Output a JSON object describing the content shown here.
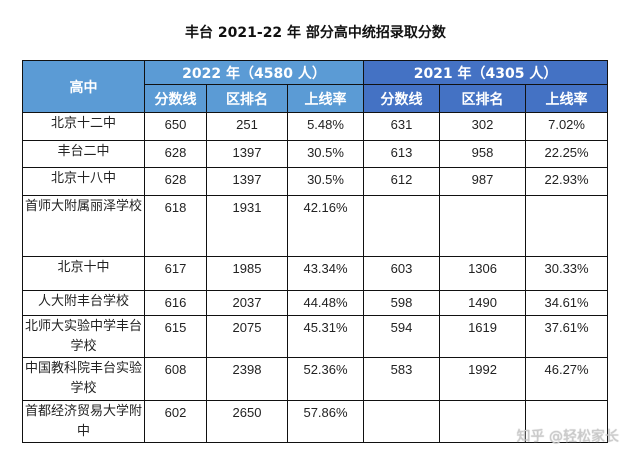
{
  "title": "丰台 2021-22 年  部分高中统招录取分数",
  "header": {
    "school": "高中",
    "year2022": "2022 年（4580 人）",
    "year2021": "2021 年（4305 人）",
    "score": "分数线",
    "rank": "区排名",
    "rate": "上线率"
  },
  "colors": {
    "header_2022": "#5b9bd5",
    "header_2021": "#4472c4"
  },
  "rows": [
    {
      "name": "北京十二中",
      "s22": "650",
      "r22": "251",
      "p22": "5.48%",
      "s21": "631",
      "r21": "302",
      "p21": "7.02%"
    },
    {
      "name": "丰台二中",
      "s22": "628",
      "r22": "1397",
      "p22": "30.5%",
      "s21": "613",
      "r21": "958",
      "p21": "22.25%"
    },
    {
      "name": "北京十八中",
      "s22": "628",
      "r22": "1397",
      "p22": "30.5%",
      "s21": "612",
      "r21": "987",
      "p21": "22.93%"
    },
    {
      "name": "首师大附属丽泽学校",
      "s22": "618",
      "r22": "1931",
      "p22": "42.16%",
      "s21": "",
      "r21": "",
      "p21": ""
    },
    {
      "name": "北京十中",
      "s22": "617",
      "r22": "1985",
      "p22": "43.34%",
      "s21": "603",
      "r21": "1306",
      "p21": "30.33%"
    },
    {
      "name": "人大附丰台学校",
      "s22": "616",
      "r22": "2037",
      "p22": "44.48%",
      "s21": "598",
      "r21": "1490",
      "p21": "34.61%"
    },
    {
      "name": "北师大实验中学丰台学校",
      "s22": "615",
      "r22": "2075",
      "p22": "45.31%",
      "s21": "594",
      "r21": "1619",
      "p21": "37.61%"
    },
    {
      "name": "中国教科院丰台实验学校",
      "s22": "608",
      "r22": "2398",
      "p22": "52.36%",
      "s21": "583",
      "r21": "1992",
      "p21": "46.27%"
    },
    {
      "name": "首都经济贸易大学附中",
      "s22": "602",
      "r22": "2650",
      "p22": "57.86%",
      "s21": "",
      "r21": "",
      "p21": ""
    }
  ],
  "watermark": "知乎 @轻松家长"
}
